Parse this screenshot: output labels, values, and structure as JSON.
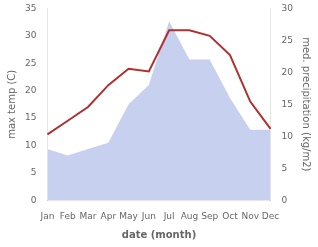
{
  "chart_data": {
    "type": "line",
    "categories": [
      "Jan",
      "Feb",
      "Mar",
      "Apr",
      "May",
      "Jun",
      "Jul",
      "Aug",
      "Sep",
      "Oct",
      "Nov",
      "Dec"
    ],
    "xlabel": "date (month)",
    "ylabel": "max temp (C)",
    "y2label": "med. precipitation (kg/m2)",
    "series": [
      {
        "type": "area",
        "color": "#c8d0f0",
        "axis": "y2",
        "values": [
          8,
          7,
          8,
          9,
          15,
          18,
          28,
          22,
          22,
          16,
          11,
          11
        ]
      },
      {
        "type": "line",
        "color": "#b03030",
        "values": [
          12,
          14.5,
          17,
          21,
          24,
          23.5,
          31,
          31,
          30,
          26.5,
          18,
          13
        ]
      }
    ],
    "ylim": [
      0,
      35
    ],
    "yticks": [
      0,
      5,
      10,
      15,
      20,
      25,
      30,
      35
    ],
    "y2lim": [
      0,
      30
    ],
    "y2ticks": [
      0,
      5,
      10,
      15,
      20,
      25,
      30
    ],
    "grid": false
  }
}
